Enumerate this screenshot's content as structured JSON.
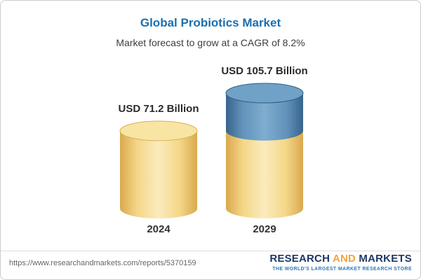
{
  "chart_data": {
    "type": "bar",
    "subtype": "3d-cylinder",
    "title": "Global Probiotics Market",
    "subtitle": "Market forecast to grow at a CAGR of 8.2%",
    "categories": [
      "2024",
      "2029"
    ],
    "values": [
      71.2,
      105.7
    ],
    "value_labels": [
      "USD 71.2 Billion",
      "USD 105.7 Billion"
    ],
    "unit": "USD Billion",
    "cagr_pct": 8.2,
    "grid": false,
    "legend_position": "none",
    "colors": {
      "title_blue": "#1B6FAF",
      "gold_edge": "#D9A94E",
      "gold": "#F4D687",
      "gold_mid": "#FBEBBD",
      "gold_top": "#F8E5A4",
      "gold_top_stroke": "#DBAF54",
      "blue_edge": "#38648C",
      "blue": "#6393BB",
      "blue_mid": "#7FADD0",
      "blue_top": "#6FA2C6",
      "blue_top_stroke": "#2F5E86"
    }
  },
  "footer": {
    "url": "https://www.researchandmarkets.com/reports/5370159",
    "logo": {
      "research": "RESEARCH",
      "and": "AND",
      "markets": "MARKETS",
      "tagline": "THE WORLD'S LARGEST MARKET RESEARCH STORE"
    }
  }
}
